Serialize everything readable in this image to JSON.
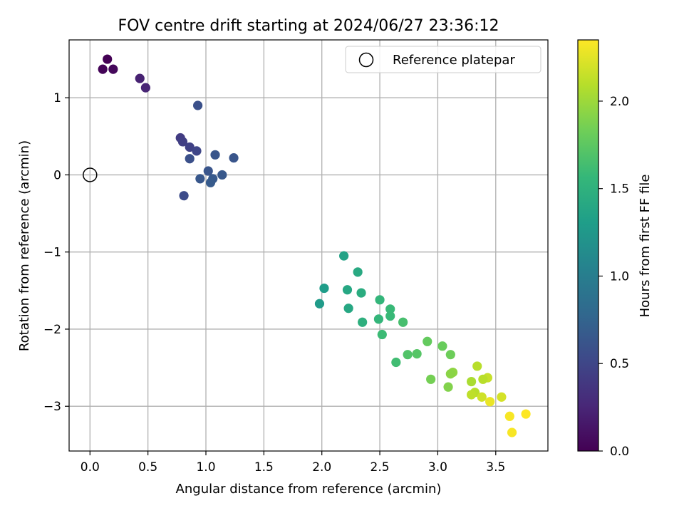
{
  "chart_data": {
    "type": "scatter",
    "title": "FOV centre drift starting at 2024/06/27 23:36:12",
    "xlabel": "Angular distance from reference (arcmin)",
    "ylabel": "Rotation from reference (arcmin)",
    "xlim": [
      -0.18,
      3.95
    ],
    "ylim": [
      -3.58,
      1.75
    ],
    "x_ticks": [
      0.0,
      0.5,
      1.0,
      1.5,
      2.0,
      2.5,
      3.0,
      3.5
    ],
    "x_tick_labels": [
      "0.0",
      "0.5",
      "1.0",
      "1.5",
      "2.0",
      "2.5",
      "3.0",
      "3.5"
    ],
    "y_ticks": [
      1,
      0,
      -1,
      -2,
      -3
    ],
    "y_tick_labels": [
      "1",
      "0",
      "−1",
      "−2",
      "−3"
    ],
    "grid": true,
    "legend": {
      "position": "top-right",
      "entries": [
        {
          "label": "Reference platepar",
          "marker": "open-circle"
        }
      ]
    },
    "reference_point": {
      "x": 0.0,
      "y": 0.0
    },
    "colorbar": {
      "label": "Hours from first FF file",
      "range": [
        0.0,
        2.35
      ],
      "ticks": [
        0.0,
        0.5,
        1.0,
        1.5,
        2.0
      ],
      "tick_labels": [
        "0.0",
        "0.5",
        "1.0",
        "1.5",
        "2.0"
      ],
      "colormap": "viridis",
      "colormap_stops": [
        "#440154",
        "#482878",
        "#3e4989",
        "#31688e",
        "#26828e",
        "#1f9e89",
        "#35b779",
        "#6ece58",
        "#b5de2b",
        "#fde725"
      ]
    },
    "points": [
      {
        "x": 0.15,
        "y": 1.5,
        "c": 0.0
      },
      {
        "x": 0.11,
        "y": 1.37,
        "c": 0.02
      },
      {
        "x": 0.2,
        "y": 1.37,
        "c": 0.05
      },
      {
        "x": 0.43,
        "y": 1.25,
        "c": 0.22
      },
      {
        "x": 0.48,
        "y": 1.13,
        "c": 0.24
      },
      {
        "x": 0.93,
        "y": 0.9,
        "c": 0.58
      },
      {
        "x": 0.78,
        "y": 0.48,
        "c": 0.42
      },
      {
        "x": 0.8,
        "y": 0.43,
        "c": 0.44
      },
      {
        "x": 0.86,
        "y": 0.36,
        "c": 0.46
      },
      {
        "x": 0.92,
        "y": 0.31,
        "c": 0.5
      },
      {
        "x": 0.86,
        "y": 0.21,
        "c": 0.58
      },
      {
        "x": 1.08,
        "y": 0.26,
        "c": 0.62
      },
      {
        "x": 1.24,
        "y": 0.22,
        "c": 0.62
      },
      {
        "x": 1.02,
        "y": 0.05,
        "c": 0.62
      },
      {
        "x": 0.95,
        "y": -0.05,
        "c": 0.64
      },
      {
        "x": 1.06,
        "y": -0.05,
        "c": 0.66
      },
      {
        "x": 1.04,
        "y": -0.1,
        "c": 0.67
      },
      {
        "x": 1.14,
        "y": 0.0,
        "c": 0.65
      },
      {
        "x": 0.81,
        "y": -0.27,
        "c": 0.55
      },
      {
        "x": 2.19,
        "y": -1.05,
        "c": 1.35
      },
      {
        "x": 2.31,
        "y": -1.26,
        "c": 1.42
      },
      {
        "x": 2.02,
        "y": -1.47,
        "c": 1.3
      },
      {
        "x": 2.22,
        "y": -1.49,
        "c": 1.4
      },
      {
        "x": 2.34,
        "y": -1.53,
        "c": 1.45
      },
      {
        "x": 1.98,
        "y": -1.67,
        "c": 1.28
      },
      {
        "x": 2.23,
        "y": -1.73,
        "c": 1.4
      },
      {
        "x": 2.5,
        "y": -1.62,
        "c": 1.55
      },
      {
        "x": 2.59,
        "y": -1.74,
        "c": 1.58
      },
      {
        "x": 2.59,
        "y": -1.83,
        "c": 1.58
      },
      {
        "x": 2.49,
        "y": -1.87,
        "c": 1.55
      },
      {
        "x": 2.35,
        "y": -1.91,
        "c": 1.48
      },
      {
        "x": 2.7,
        "y": -1.91,
        "c": 1.65
      },
      {
        "x": 2.52,
        "y": -2.07,
        "c": 1.6
      },
      {
        "x": 2.91,
        "y": -2.16,
        "c": 1.78
      },
      {
        "x": 3.04,
        "y": -2.22,
        "c": 1.8
      },
      {
        "x": 2.82,
        "y": -2.32,
        "c": 1.72
      },
      {
        "x": 2.74,
        "y": -2.33,
        "c": 1.7
      },
      {
        "x": 3.11,
        "y": -2.33,
        "c": 1.82
      },
      {
        "x": 2.64,
        "y": -2.43,
        "c": 1.62
      },
      {
        "x": 3.34,
        "y": -2.48,
        "c": 2.1
      },
      {
        "x": 3.13,
        "y": -2.56,
        "c": 1.95
      },
      {
        "x": 3.11,
        "y": -2.58,
        "c": 1.93
      },
      {
        "x": 2.94,
        "y": -2.65,
        "c": 1.85
      },
      {
        "x": 3.43,
        "y": -2.63,
        "c": 2.15
      },
      {
        "x": 3.39,
        "y": -2.65,
        "c": 2.1
      },
      {
        "x": 3.29,
        "y": -2.68,
        "c": 2.05
      },
      {
        "x": 3.09,
        "y": -2.75,
        "c": 1.9
      },
      {
        "x": 3.32,
        "y": -2.82,
        "c": 2.1
      },
      {
        "x": 3.29,
        "y": -2.85,
        "c": 2.12
      },
      {
        "x": 3.38,
        "y": -2.88,
        "c": 2.18
      },
      {
        "x": 3.45,
        "y": -2.94,
        "c": 2.28
      },
      {
        "x": 3.55,
        "y": -2.88,
        "c": 2.2
      },
      {
        "x": 3.62,
        "y": -3.13,
        "c": 2.33
      },
      {
        "x": 3.76,
        "y": -3.1,
        "c": 2.35
      },
      {
        "x": 3.64,
        "y": -3.34,
        "c": 2.33
      }
    ]
  }
}
